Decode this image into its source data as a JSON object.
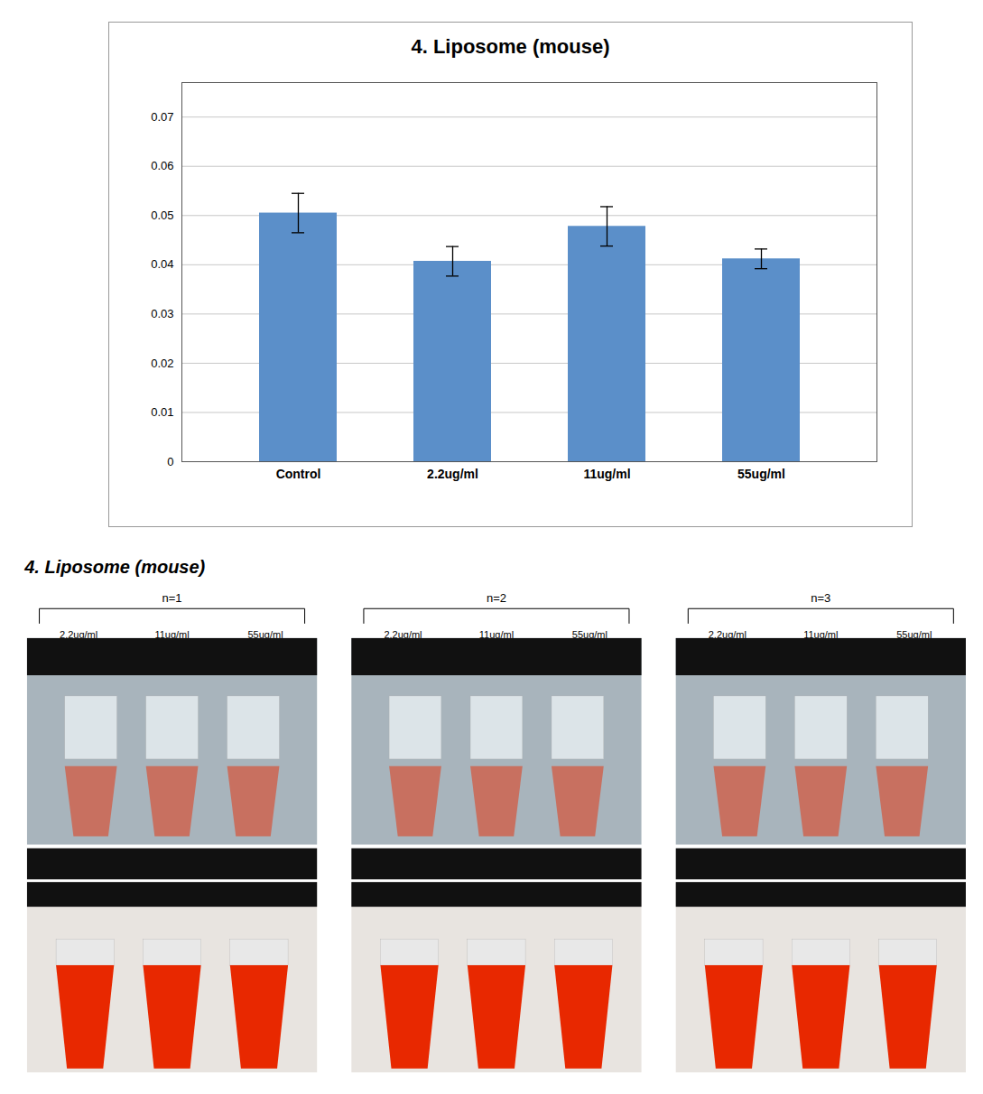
{
  "chart_data": {
    "type": "bar",
    "title": "4. Liposome (mouse)",
    "categories": [
      "Control",
      "2.2ug/ml",
      "11ug/ml",
      "55ug/ml"
    ],
    "values": [
      0.0505,
      0.0407,
      0.0478,
      0.0412
    ],
    "errors": [
      0.004,
      0.003,
      0.004,
      0.002
    ],
    "color": "#5b8fc9",
    "ylim": [
      0,
      0.077
    ],
    "yticks": [
      0,
      0.01,
      0.02,
      0.03,
      0.04,
      0.05,
      0.06,
      0.07
    ],
    "grid": true,
    "annotations": [
      "4.  Liposome (mouse)",
      "n=1",
      "n=2",
      "n=3",
      "2.2ug/ml",
      "11ug/ml",
      "55ug/ml"
    ]
  }
}
